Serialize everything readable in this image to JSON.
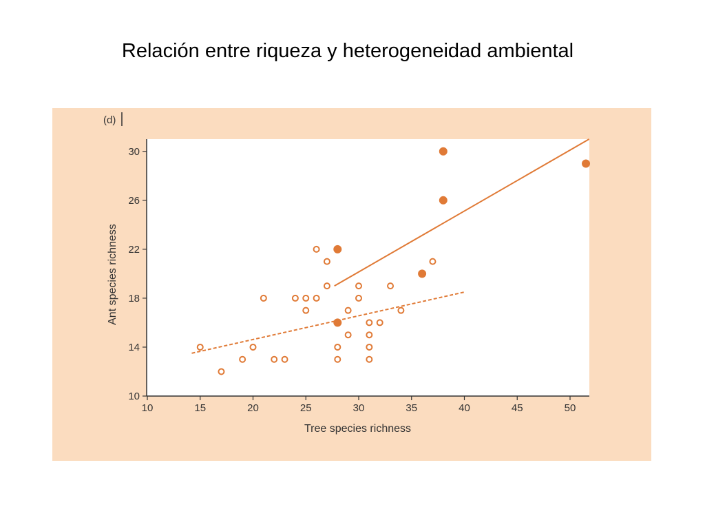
{
  "slide": {
    "title": "Relación entre riqueza y heterogeneidad ambiental"
  },
  "colors": {
    "panel_background": "#fbdcbf",
    "plot_background": "#ffffff",
    "accent": "#e07a36"
  },
  "chart_data": {
    "type": "scatter",
    "panel_label": "(d)",
    "xlabel": "Tree species richness",
    "ylabel": "Ant species richness",
    "xlim": [
      10,
      52
    ],
    "ylim": [
      10,
      31
    ],
    "x_ticks": [
      10,
      15,
      20,
      25,
      30,
      35,
      40,
      45,
      50
    ],
    "y_ticks": [
      10,
      14,
      18,
      22,
      26,
      30
    ],
    "grid": false,
    "series": [
      {
        "marker": "open-circle",
        "points": [
          [
            15,
            14
          ],
          [
            17,
            12
          ],
          [
            19,
            13
          ],
          [
            20,
            14
          ],
          [
            21,
            18
          ],
          [
            22,
            13
          ],
          [
            23,
            13
          ],
          [
            24,
            18
          ],
          [
            25,
            18
          ],
          [
            25,
            17
          ],
          [
            26,
            22
          ],
          [
            26,
            18
          ],
          [
            27,
            21
          ],
          [
            27,
            19
          ],
          [
            28,
            14
          ],
          [
            28,
            13
          ],
          [
            29,
            17
          ],
          [
            29,
            15
          ],
          [
            30,
            19
          ],
          [
            30,
            18
          ],
          [
            31,
            16
          ],
          [
            31,
            15
          ],
          [
            31,
            14
          ],
          [
            31,
            13
          ],
          [
            32,
            16
          ],
          [
            33,
            19
          ],
          [
            34,
            17
          ],
          [
            37,
            21
          ]
        ]
      },
      {
        "marker": "filled-circle",
        "points": [
          [
            28,
            22
          ],
          [
            28,
            16
          ],
          [
            36,
            20
          ],
          [
            38,
            30
          ],
          [
            38,
            26
          ],
          [
            51.5,
            29
          ]
        ]
      }
    ],
    "trend_lines": [
      {
        "style": "dashed",
        "from": [
          14.2,
          13.5
        ],
        "to": [
          40,
          18.5
        ]
      },
      {
        "style": "solid",
        "from": [
          27.7,
          19
        ],
        "to": [
          51.8,
          31
        ]
      }
    ]
  }
}
